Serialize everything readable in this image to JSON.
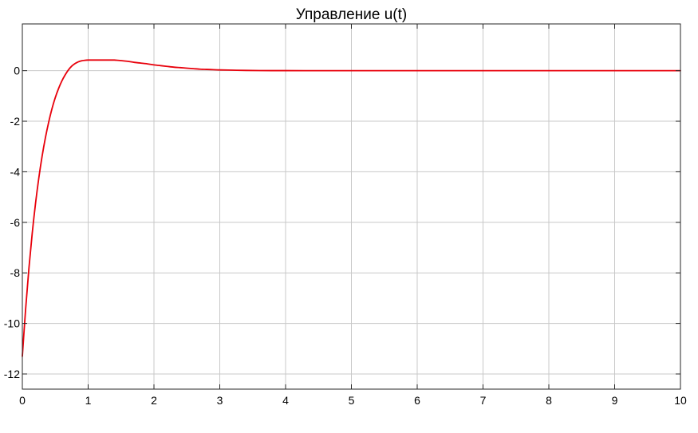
{
  "chart_data": {
    "type": "line",
    "title": "Управление u(t)",
    "xlabel": "",
    "ylabel": "",
    "xlim": [
      0,
      10
    ],
    "ylim": [
      -12.6,
      1.85
    ],
    "grid": true,
    "legend": "none",
    "x_ticks": [
      0,
      1,
      2,
      3,
      4,
      5,
      6,
      7,
      8,
      9,
      10
    ],
    "y_ticks": [
      0,
      -2,
      -4,
      -6,
      -8,
      -10,
      -12
    ],
    "x_tick_labels": [
      "0",
      "1",
      "2",
      "3",
      "4",
      "5",
      "6",
      "7",
      "8",
      "9",
      "10"
    ],
    "y_tick_labels": [
      "0",
      "-2",
      "-4",
      "-6",
      "-8",
      "-10",
      "-12"
    ],
    "series": [
      {
        "color": "#e8000b",
        "x": [
          0,
          0.05,
          0.1,
          0.15,
          0.2,
          0.25,
          0.3,
          0.35,
          0.4,
          0.45,
          0.5,
          0.55,
          0.6,
          0.65,
          0.7,
          0.75,
          0.8,
          0.85,
          0.9,
          0.95,
          1.0,
          1.05,
          1.1,
          1.15,
          1.2,
          1.25,
          1.3,
          1.35,
          1.4,
          1.45,
          1.5,
          1.6,
          1.7,
          1.8,
          1.9,
          2.0,
          2.1,
          2.2,
          2.3,
          2.4,
          2.5,
          2.6,
          2.7,
          2.8,
          2.9,
          3.0,
          3.2,
          3.4,
          3.6,
          3.8,
          4.0,
          4.5,
          5.0,
          6.0,
          7.0,
          8.0,
          9.0,
          10.0
        ],
        "values": [
          -11.3,
          -9.43,
          -7.82,
          -6.44,
          -5.26,
          -4.25,
          -3.39,
          -2.66,
          -2.04,
          -1.51,
          -1.07,
          -0.71,
          -0.41,
          -0.17,
          0.03,
          0.18,
          0.28,
          0.35,
          0.39,
          0.41,
          0.42,
          0.42,
          0.42,
          0.42,
          0.42,
          0.42,
          0.42,
          0.42,
          0.42,
          0.41,
          0.4,
          0.37,
          0.33,
          0.3,
          0.27,
          0.23,
          0.2,
          0.17,
          0.14,
          0.12,
          0.1,
          0.08,
          0.06,
          0.05,
          0.04,
          0.03,
          0.02,
          0.01,
          0.005,
          0.003,
          0.002,
          0.0,
          0.0,
          0.0,
          0.0,
          0.0,
          0.0,
          0.0
        ]
      }
    ]
  }
}
